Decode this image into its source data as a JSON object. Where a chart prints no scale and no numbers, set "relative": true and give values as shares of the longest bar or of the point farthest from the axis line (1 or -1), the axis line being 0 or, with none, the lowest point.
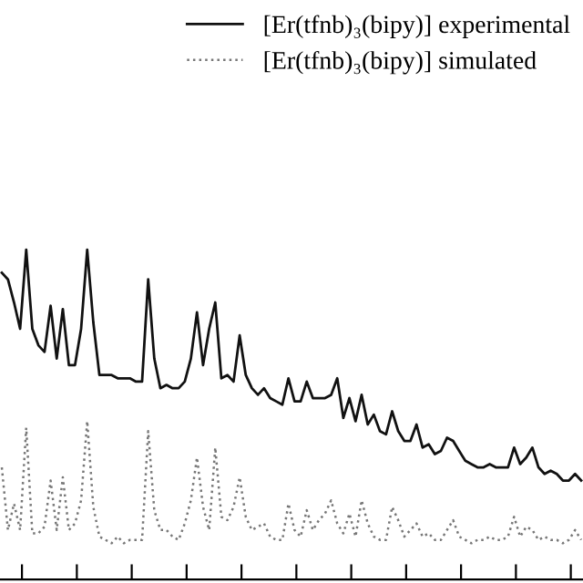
{
  "chart_data": {
    "type": "line",
    "relative": true,
    "legend": "top right",
    "grid": false,
    "categories": [
      null,
      null,
      null,
      null,
      null,
      null,
      null,
      null,
      null,
      null,
      null,
      null,
      null,
      null,
      null,
      null,
      null,
      null,
      null,
      null,
      null,
      null,
      null,
      null,
      null,
      null,
      null,
      null,
      null,
      null,
      null,
      null,
      null,
      null,
      null,
      null,
      null,
      null,
      null,
      null,
      null,
      null,
      null,
      null,
      null,
      null,
      null,
      null,
      null,
      null,
      null,
      null,
      null,
      null,
      null,
      null,
      null,
      null,
      null,
      null,
      null,
      null,
      null,
      null,
      null,
      null,
      null,
      null,
      null,
      null,
      null,
      null,
      null,
      null,
      null,
      null,
      null,
      null,
      null,
      null,
      null,
      null,
      null,
      null,
      null,
      null,
      null,
      null,
      null,
      null,
      null,
      null,
      null,
      null,
      null,
      null
    ],
    "series": [
      {
        "name": "[Er(tfnb)₃(bipy)] experimental",
        "color": "#111111",
        "line_style": "solid",
        "values": [
          0.93,
          0.91,
          0.84,
          0.76,
          1.0,
          0.76,
          0.71,
          0.69,
          0.83,
          0.67,
          0.82,
          0.65,
          0.65,
          0.76,
          1.0,
          0.78,
          0.62,
          0.62,
          0.62,
          0.61,
          0.61,
          0.61,
          0.6,
          0.6,
          0.91,
          0.67,
          0.58,
          0.59,
          0.58,
          0.58,
          0.6,
          0.67,
          0.81,
          0.65,
          0.76,
          0.84,
          0.61,
          0.62,
          0.6,
          0.74,
          0.62,
          0.58,
          0.56,
          0.58,
          0.55,
          0.54,
          0.53,
          0.61,
          0.54,
          0.54,
          0.6,
          0.55,
          0.55,
          0.55,
          0.56,
          0.61,
          0.49,
          0.55,
          0.48,
          0.56,
          0.47,
          0.5,
          0.45,
          0.44,
          0.51,
          0.45,
          0.42,
          0.42,
          0.47,
          0.4,
          0.41,
          0.38,
          0.39,
          0.43,
          0.42,
          0.39,
          0.36,
          0.35,
          0.34,
          0.34,
          0.35,
          0.34,
          0.34,
          0.34,
          0.4,
          0.35,
          0.37,
          0.4,
          0.34,
          0.32,
          0.33,
          0.32,
          0.3,
          0.3,
          0.32,
          0.3
        ]
      },
      {
        "name": "[Er(tfnb)₃(bipy)] simulated",
        "color": "#777777",
        "line_style": "dotted",
        "values": [
          0.34,
          0.15,
          0.23,
          0.15,
          0.46,
          0.14,
          0.14,
          0.16,
          0.3,
          0.15,
          0.31,
          0.15,
          0.17,
          0.24,
          0.48,
          0.22,
          0.13,
          0.12,
          0.11,
          0.13,
          0.11,
          0.12,
          0.12,
          0.12,
          0.45,
          0.21,
          0.15,
          0.15,
          0.13,
          0.12,
          0.17,
          0.24,
          0.37,
          0.22,
          0.15,
          0.4,
          0.19,
          0.18,
          0.22,
          0.31,
          0.19,
          0.15,
          0.16,
          0.17,
          0.13,
          0.12,
          0.12,
          0.23,
          0.15,
          0.13,
          0.21,
          0.15,
          0.18,
          0.2,
          0.24,
          0.17,
          0.14,
          0.2,
          0.13,
          0.24,
          0.17,
          0.13,
          0.12,
          0.12,
          0.22,
          0.18,
          0.13,
          0.15,
          0.17,
          0.13,
          0.14,
          0.12,
          0.12,
          0.15,
          0.18,
          0.13,
          0.12,
          0.11,
          0.12,
          0.12,
          0.13,
          0.12,
          0.12,
          0.13,
          0.19,
          0.13,
          0.16,
          0.15,
          0.12,
          0.13,
          0.12,
          0.12,
          0.11,
          0.12,
          0.15,
          0.12
        ]
      }
    ]
  }
}
